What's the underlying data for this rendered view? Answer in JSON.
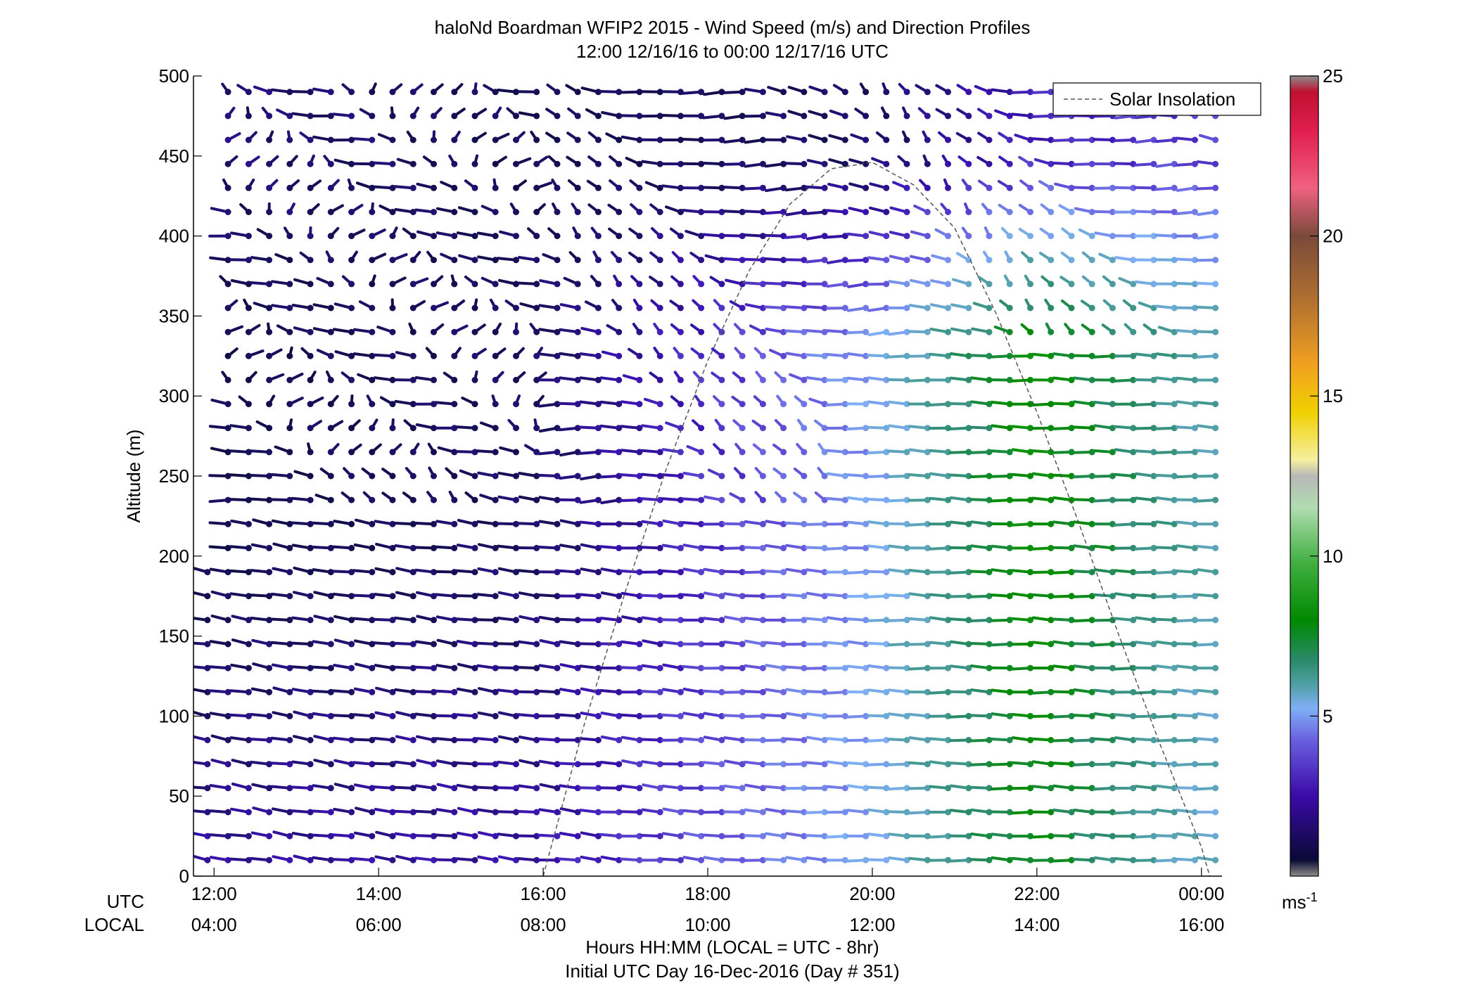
{
  "chart_data": {
    "type": "wind-barb-profile",
    "title": "haloNd Boardman WFIP2 2015 - Wind Speed (m/s) and Direction Profiles",
    "subtitle": "12:00 12/16/16 to 00:00 12/17/16  UTC",
    "ylabel": "Altitude (m)",
    "xlabel": "Hours HH:MM  (LOCAL = UTC - 8hr)",
    "xlabel2": "Initial UTC Day 16-Dec-2016 (Day # 351)",
    "xrow_labels": {
      "utc": "UTC",
      "local": "LOCAL"
    },
    "xlim_hours": [
      11.75,
      24.25
    ],
    "ylim": [
      0,
      500
    ],
    "y_ticks": [
      0,
      50,
      100,
      150,
      200,
      250,
      300,
      350,
      400,
      450,
      500
    ],
    "x_ticks": [
      {
        "hour": 12,
        "utc": "12:00",
        "local": "04:00"
      },
      {
        "hour": 14,
        "utc": "14:00",
        "local": "06:00"
      },
      {
        "hour": 16,
        "utc": "16:00",
        "local": "08:00"
      },
      {
        "hour": 18,
        "utc": "18:00",
        "local": "10:00"
      },
      {
        "hour": 20,
        "utc": "20:00",
        "local": "12:00"
      },
      {
        "hour": 22,
        "utc": "22:00",
        "local": "14:00"
      },
      {
        "hour": 24,
        "utc": "00:00",
        "local": "16:00"
      }
    ],
    "legend": {
      "entry": "Solar Insolation",
      "style": "dashed",
      "placement": "top-right"
    },
    "solar_insolation": {
      "hours": [
        16.0,
        16.5,
        17.0,
        17.5,
        18.0,
        18.5,
        19.0,
        19.5,
        20.0,
        20.5,
        21.0,
        21.5,
        22.0,
        22.5,
        23.0,
        23.5,
        24.0,
        24.1
      ],
      "values": [
        0,
        95,
        178,
        255,
        322,
        378,
        420,
        442,
        446,
        432,
        405,
        352,
        290,
        222,
        150,
        82,
        18,
        0
      ]
    },
    "colorbar": {
      "unit": "ms",
      "unit_superscript": "-1",
      "range": [
        0,
        25
      ],
      "ticks": [
        5,
        10,
        15,
        20,
        25
      ]
    },
    "wind_field": {
      "time_start_hour": 11.92,
      "time_step_hours": 0.25,
      "n_times": 50,
      "altitude_start_m": 10,
      "altitude_step_m": 15,
      "n_levels": 33,
      "speed_ms_sample_by_hour": [
        {
          "hour": 12,
          "low_levels": 2.0,
          "mid_levels": 0.8,
          "upper_levels": 1.5
        },
        {
          "hour": 16,
          "low_levels": 2.2,
          "mid_levels": 1.2,
          "upper_levels": 0.9
        },
        {
          "hour": 20,
          "low_levels": 4.5,
          "mid_levels": 4.3,
          "upper_levels": 1.2
        },
        {
          "hour": 22,
          "low_levels": 7.5,
          "mid_levels": 8.0,
          "upper_levels": 2.5
        },
        {
          "hour": 24,
          "low_levels": 5.0,
          "mid_levels": 5.6,
          "upper_levels": 3.0
        }
      ],
      "direction_note": "winds from the west to southwest"
    }
  }
}
